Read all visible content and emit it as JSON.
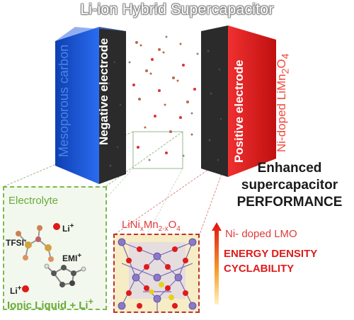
{
  "title": "Li-ion Hybrid Supercapacitor",
  "electrodes": {
    "negative_label": "Negative electrode",
    "positive_label": "Positive electrode",
    "negative_material": "Mesoporous carbon",
    "positive_material_prefix": "Ni-doped LiMn",
    "positive_material_sub1": "2",
    "positive_material_mid": "O",
    "positive_material_sub2": "4"
  },
  "performance": {
    "line1": "Enhanced",
    "line2": "supercapacitor",
    "line3": "PERFORMANCE"
  },
  "electrolyte": {
    "title": "Electrolyte",
    "tfsi": "TFSI",
    "tfsi_sup": "-",
    "li_top": "Li",
    "li_top_sup": "+",
    "emi": "EMI",
    "emi_sup": "+",
    "li_bottom": "Li",
    "li_bottom_sup": "+",
    "footer": "Ionic Liquid + Li",
    "footer_sup": "+"
  },
  "crystal": {
    "f1": "LiNi",
    "f1_sub": "x",
    "f2": "Mn",
    "f2_sub": "2-x",
    "f3": "O",
    "f3_sub": "4"
  },
  "properties": {
    "header": "Ni- doped LMO",
    "item1": "ENERGY DENSITY",
    "item2": "CYCLABILITY"
  },
  "colors": {
    "negative": "#1a5ce8",
    "positive": "#e81c1c",
    "electrolyte": "#6aaa3a",
    "accent_red": "#e01a1a"
  }
}
